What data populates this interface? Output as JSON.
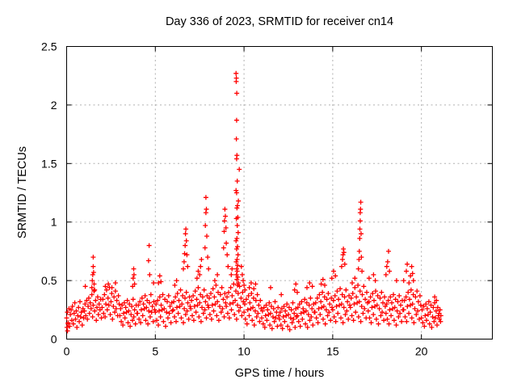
{
  "chart_data": {
    "type": "scatter",
    "title": "Day 336 of 2023, SRMTID for receiver cn14",
    "xlabel": "GPS time / hours",
    "ylabel": "SRMTID / TECUs",
    "xlim": [
      0,
      24
    ],
    "ylim": [
      0,
      2.5
    ],
    "xticks": [
      0,
      5,
      10,
      15,
      20
    ],
    "xtick_labels": [
      "0",
      "5",
      "10",
      "15",
      "20"
    ],
    "yticks": [
      0,
      0.5,
      1,
      1.5,
      2,
      2.5
    ],
    "ytick_labels": [
      "0",
      "0.5",
      "1",
      "1.5",
      "2",
      "2.5"
    ],
    "grid": "dashed",
    "grid_color": "#b0b0b0",
    "marker": {
      "shape": "plus",
      "color": "#ff0000",
      "size": 7
    },
    "legend": "none",
    "baseline_offsets": [
      0.0,
      0.04,
      0.08,
      0.13,
      0.17,
      0.21,
      0.25,
      0.29,
      0.33,
      0.38,
      0.42,
      0.46,
      0.5,
      0.54,
      0.58,
      0.63,
      0.67,
      0.71,
      0.75,
      0.79,
      0.83,
      0.88,
      0.92,
      0.96
    ],
    "baseline": [
      {
        "hour": 0,
        "y": [
          0.18,
          0.23,
          0.14,
          0.26,
          0.11,
          0.21,
          0.25,
          0.16,
          0.28,
          0.13,
          0.22,
          0.31,
          0.17,
          0.24,
          0.1,
          0.2,
          0.27,
          0.15,
          0.32,
          0.19,
          0.23,
          0.12,
          0.26,
          0.18
        ]
      },
      {
        "hour": 1,
        "y": [
          0.24,
          0.3,
          0.2,
          0.33,
          0.17,
          0.28,
          0.35,
          0.22,
          0.31,
          0.26,
          0.38,
          0.19,
          0.29,
          0.41,
          0.24,
          0.33,
          0.16,
          0.27,
          0.36,
          0.21,
          0.3,
          0.25,
          0.34,
          0.18
        ]
      },
      {
        "hour": 2,
        "y": [
          0.27,
          0.34,
          0.22,
          0.38,
          0.19,
          0.3,
          0.42,
          0.25,
          0.35,
          0.29,
          0.44,
          0.21,
          0.32,
          0.39,
          0.17,
          0.28,
          0.36,
          0.23,
          0.41,
          0.26,
          0.33,
          0.2,
          0.37,
          0.3
        ]
      },
      {
        "hour": 3,
        "y": [
          0.2,
          0.26,
          0.15,
          0.29,
          0.12,
          0.22,
          0.31,
          0.18,
          0.27,
          0.23,
          0.33,
          0.14,
          0.24,
          0.3,
          0.11,
          0.21,
          0.28,
          0.16,
          0.34,
          0.19,
          0.25,
          0.13,
          0.29,
          0.22
        ]
      },
      {
        "hour": 4,
        "y": [
          0.22,
          0.29,
          0.17,
          0.32,
          0.14,
          0.25,
          0.35,
          0.2,
          0.3,
          0.26,
          0.37,
          0.16,
          0.27,
          0.33,
          0.13,
          0.24,
          0.31,
          0.19,
          0.38,
          0.23,
          0.28,
          0.15,
          0.32,
          0.25
        ]
      },
      {
        "hour": 5,
        "y": [
          0.23,
          0.3,
          0.16,
          0.33,
          0.12,
          0.24,
          0.36,
          0.19,
          0.29,
          0.25,
          0.38,
          0.15,
          0.26,
          0.34,
          0.11,
          0.23,
          0.32,
          0.18,
          0.37,
          0.22,
          0.28,
          0.14,
          0.31,
          0.24
        ]
      },
      {
        "hour": 6,
        "y": [
          0.25,
          0.32,
          0.19,
          0.36,
          0.15,
          0.27,
          0.39,
          0.22,
          0.33,
          0.28,
          0.42,
          0.18,
          0.3,
          0.37,
          0.14,
          0.26,
          0.35,
          0.21,
          0.4,
          0.24,
          0.31,
          0.17,
          0.36,
          0.28
        ]
      },
      {
        "hour": 7,
        "y": [
          0.26,
          0.33,
          0.2,
          0.37,
          0.16,
          0.28,
          0.41,
          0.23,
          0.34,
          0.29,
          0.44,
          0.19,
          0.31,
          0.38,
          0.15,
          0.27,
          0.36,
          0.22,
          0.42,
          0.25,
          0.32,
          0.18,
          0.37,
          0.29
        ]
      },
      {
        "hour": 8,
        "y": [
          0.27,
          0.35,
          0.21,
          0.39,
          0.17,
          0.29,
          0.43,
          0.24,
          0.36,
          0.3,
          0.46,
          0.2,
          0.32,
          0.4,
          0.16,
          0.28,
          0.38,
          0.23,
          0.44,
          0.26,
          0.34,
          0.19,
          0.39,
          0.31
        ]
      },
      {
        "hour": 9,
        "y": [
          0.28,
          0.36,
          0.22,
          0.4,
          0.18,
          0.3,
          0.44,
          0.25,
          0.37,
          0.31,
          0.47,
          0.21,
          0.33,
          0.41,
          0.17,
          0.29,
          0.39,
          0.24,
          0.45,
          0.27,
          0.35,
          0.2,
          0.4,
          0.32
        ]
      },
      {
        "hour": 10,
        "y": [
          0.23,
          0.3,
          0.17,
          0.34,
          0.13,
          0.25,
          0.37,
          0.2,
          0.31,
          0.26,
          0.39,
          0.16,
          0.27,
          0.35,
          0.12,
          0.24,
          0.33,
          0.19,
          0.38,
          0.22,
          0.29,
          0.15,
          0.33,
          0.26
        ]
      },
      {
        "hour": 11,
        "y": [
          0.18,
          0.24,
          0.13,
          0.27,
          0.1,
          0.2,
          0.29,
          0.16,
          0.25,
          0.21,
          0.31,
          0.12,
          0.22,
          0.28,
          0.09,
          0.19,
          0.26,
          0.15,
          0.32,
          0.18,
          0.23,
          0.11,
          0.27,
          0.2
        ]
      },
      {
        "hour": 12,
        "y": [
          0.17,
          0.23,
          0.12,
          0.26,
          0.09,
          0.19,
          0.28,
          0.15,
          0.24,
          0.2,
          0.3,
          0.11,
          0.21,
          0.27,
          0.08,
          0.18,
          0.25,
          0.14,
          0.31,
          0.17,
          0.22,
          0.1,
          0.26,
          0.19
        ]
      },
      {
        "hour": 13,
        "y": [
          0.2,
          0.27,
          0.15,
          0.3,
          0.11,
          0.22,
          0.32,
          0.17,
          0.26,
          0.23,
          0.34,
          0.13,
          0.24,
          0.31,
          0.1,
          0.21,
          0.29,
          0.16,
          0.35,
          0.19,
          0.26,
          0.12,
          0.3,
          0.23
        ]
      },
      {
        "hour": 14,
        "y": [
          0.23,
          0.31,
          0.18,
          0.35,
          0.14,
          0.26,
          0.38,
          0.21,
          0.32,
          0.27,
          0.4,
          0.17,
          0.28,
          0.36,
          0.13,
          0.25,
          0.34,
          0.2,
          0.39,
          0.23,
          0.3,
          0.16,
          0.35,
          0.27
        ]
      },
      {
        "hour": 15,
        "y": [
          0.25,
          0.33,
          0.19,
          0.37,
          0.15,
          0.28,
          0.41,
          0.22,
          0.34,
          0.29,
          0.43,
          0.18,
          0.3,
          0.38,
          0.14,
          0.27,
          0.36,
          0.21,
          0.42,
          0.24,
          0.32,
          0.17,
          0.37,
          0.29
        ]
      },
      {
        "hour": 16,
        "y": [
          0.27,
          0.35,
          0.2,
          0.39,
          0.16,
          0.3,
          0.44,
          0.23,
          0.36,
          0.31,
          0.46,
          0.19,
          0.32,
          0.41,
          0.15,
          0.28,
          0.38,
          0.22,
          0.45,
          0.26,
          0.34,
          0.18,
          0.4,
          0.31
        ]
      },
      {
        "hour": 17,
        "y": [
          0.24,
          0.32,
          0.18,
          0.36,
          0.14,
          0.27,
          0.39,
          0.21,
          0.33,
          0.28,
          0.41,
          0.17,
          0.29,
          0.37,
          0.13,
          0.26,
          0.35,
          0.2,
          0.4,
          0.23,
          0.31,
          0.16,
          0.36,
          0.28
        ]
      },
      {
        "hour": 18,
        "y": [
          0.22,
          0.3,
          0.17,
          0.33,
          0.13,
          0.25,
          0.36,
          0.2,
          0.31,
          0.26,
          0.38,
          0.16,
          0.27,
          0.34,
          0.12,
          0.24,
          0.32,
          0.19,
          0.37,
          0.22,
          0.29,
          0.15,
          0.33,
          0.25
        ]
      },
      {
        "hour": 19,
        "y": [
          0.25,
          0.33,
          0.19,
          0.36,
          0.15,
          0.28,
          0.4,
          0.22,
          0.34,
          0.29,
          0.42,
          0.18,
          0.3,
          0.38,
          0.14,
          0.26,
          0.36,
          0.21,
          0.41,
          0.24,
          0.32,
          0.17,
          0.37,
          0.29
        ]
      },
      {
        "hour": 20,
        "y": [
          0.18,
          0.25,
          0.14,
          0.28,
          0.11,
          0.2,
          0.3,
          0.16,
          0.26,
          0.21,
          0.32,
          0.13,
          0.23,
          0.29,
          0.1,
          0.19,
          0.27,
          0.15,
          0.31,
          0.18,
          0.24,
          0.12,
          0.27,
          0.2
        ]
      }
    ],
    "extra_points": [
      [
        0.02,
        0.1
      ],
      [
        0.05,
        0.07
      ],
      [
        0.08,
        0.13
      ],
      [
        1.05,
        0.45
      ],
      [
        1.42,
        0.44
      ],
      [
        1.45,
        0.5
      ],
      [
        1.47,
        0.55
      ],
      [
        1.5,
        0.62
      ],
      [
        1.5,
        0.7
      ],
      [
        1.52,
        0.57
      ],
      [
        1.55,
        0.47
      ],
      [
        1.58,
        0.42
      ],
      [
        2.18,
        0.45
      ],
      [
        2.35,
        0.47
      ],
      [
        2.55,
        0.44
      ],
      [
        2.75,
        0.48
      ],
      [
        3.72,
        0.45
      ],
      [
        3.75,
        0.52
      ],
      [
        3.78,
        0.6
      ],
      [
        3.8,
        0.55
      ],
      [
        3.83,
        0.47
      ],
      [
        4.62,
        0.67
      ],
      [
        4.65,
        0.8
      ],
      [
        4.68,
        0.55
      ],
      [
        4.9,
        0.48
      ],
      [
        5.18,
        0.48
      ],
      [
        5.25,
        0.54
      ],
      [
        5.32,
        0.49
      ],
      [
        6.1,
        0.46
      ],
      [
        6.2,
        0.5
      ],
      [
        6.58,
        0.6
      ],
      [
        6.62,
        0.66
      ],
      [
        6.65,
        0.73
      ],
      [
        6.68,
        0.8
      ],
      [
        6.7,
        0.9
      ],
      [
        6.72,
        0.94
      ],
      [
        6.75,
        0.84
      ],
      [
        6.78,
        0.72
      ],
      [
        6.82,
        0.62
      ],
      [
        7.35,
        0.52
      ],
      [
        7.42,
        0.58
      ],
      [
        7.5,
        0.55
      ],
      [
        7.55,
        0.62
      ],
      [
        7.6,
        0.68
      ],
      [
        7.8,
        0.78
      ],
      [
        7.82,
        0.97
      ],
      [
        7.85,
        1.08
      ],
      [
        7.85,
        1.21
      ],
      [
        7.88,
        1.11
      ],
      [
        7.9,
        0.88
      ],
      [
        7.95,
        0.7
      ],
      [
        8.0,
        0.6
      ],
      [
        8.35,
        0.5
      ],
      [
        8.5,
        0.55
      ],
      [
        8.85,
        0.78
      ],
      [
        8.88,
        0.92
      ],
      [
        8.9,
        1.01
      ],
      [
        8.92,
        1.11
      ],
      [
        8.95,
        1.05
      ],
      [
        8.98,
        0.95
      ],
      [
        9.0,
        0.82
      ],
      [
        9.05,
        0.72
      ],
      [
        9.1,
        0.62
      ],
      [
        9.28,
        0.55
      ],
      [
        9.32,
        0.6
      ],
      [
        9.55,
        2.27
      ],
      [
        9.57,
        2.23
      ],
      [
        9.56,
        2.2
      ],
      [
        9.59,
        2.1
      ],
      [
        9.58,
        1.87
      ],
      [
        9.57,
        1.71
      ],
      [
        9.6,
        1.57
      ],
      [
        9.58,
        1.54
      ],
      [
        9.73,
        1.45
      ],
      [
        9.62,
        1.35
      ],
      [
        9.55,
        1.27
      ],
      [
        9.58,
        1.25
      ],
      [
        9.68,
        1.18
      ],
      [
        9.63,
        1.14
      ],
      [
        9.6,
        1.12
      ],
      [
        9.65,
        1.04
      ],
      [
        9.57,
        1.03
      ],
      [
        9.62,
        0.97
      ],
      [
        9.67,
        0.91
      ],
      [
        9.6,
        0.86
      ],
      [
        9.55,
        0.84
      ],
      [
        9.63,
        0.79
      ],
      [
        9.58,
        0.77
      ],
      [
        9.66,
        0.72
      ],
      [
        9.61,
        0.68
      ],
      [
        9.56,
        0.66
      ],
      [
        9.64,
        0.63
      ],
      [
        9.59,
        0.6
      ],
      [
        9.62,
        0.58
      ],
      [
        9.57,
        0.55
      ],
      [
        9.65,
        0.53
      ],
      [
        9.6,
        0.51
      ],
      [
        9.68,
        0.48
      ],
      [
        9.63,
        0.46
      ],
      [
        9.85,
        0.62
      ],
      [
        9.9,
        0.55
      ],
      [
        9.95,
        0.5
      ],
      [
        10.0,
        0.46
      ],
      [
        10.05,
        0.42
      ],
      [
        10.3,
        0.44
      ],
      [
        10.4,
        0.48
      ],
      [
        10.55,
        0.43
      ],
      [
        10.65,
        0.47
      ],
      [
        11.5,
        0.44
      ],
      [
        12.1,
        0.38
      ],
      [
        12.85,
        0.42
      ],
      [
        12.92,
        0.47
      ],
      [
        13.0,
        0.4
      ],
      [
        13.55,
        0.44
      ],
      [
        13.7,
        0.48
      ],
      [
        13.85,
        0.45
      ],
      [
        14.35,
        0.47
      ],
      [
        14.45,
        0.51
      ],
      [
        14.55,
        0.46
      ],
      [
        14.95,
        0.52
      ],
      [
        15.05,
        0.58
      ],
      [
        15.15,
        0.54
      ],
      [
        15.5,
        0.62
      ],
      [
        15.55,
        0.68
      ],
      [
        15.58,
        0.72
      ],
      [
        15.6,
        0.77
      ],
      [
        15.63,
        0.74
      ],
      [
        15.68,
        0.64
      ],
      [
        16.1,
        0.48
      ],
      [
        16.25,
        0.52
      ],
      [
        16.45,
        0.6
      ],
      [
        16.48,
        0.68
      ],
      [
        16.5,
        0.75
      ],
      [
        16.52,
        0.86
      ],
      [
        16.53,
        0.94
      ],
      [
        16.55,
        1.01
      ],
      [
        16.55,
        1.08
      ],
      [
        16.57,
        1.11
      ],
      [
        16.58,
        1.17
      ],
      [
        16.6,
        0.9
      ],
      [
        16.62,
        0.7
      ],
      [
        16.65,
        0.58
      ],
      [
        17.05,
        0.52
      ],
      [
        17.3,
        0.55
      ],
      [
        17.4,
        0.5
      ],
      [
        18.0,
        0.55
      ],
      [
        18.05,
        0.62
      ],
      [
        18.1,
        0.66
      ],
      [
        18.15,
        0.75
      ],
      [
        18.2,
        0.58
      ],
      [
        18.6,
        0.5
      ],
      [
        19.0,
        0.5
      ],
      [
        19.15,
        0.58
      ],
      [
        19.2,
        0.64
      ],
      [
        19.3,
        0.48
      ],
      [
        19.38,
        0.54
      ],
      [
        19.45,
        0.62
      ],
      [
        19.5,
        0.56
      ],
      [
        19.55,
        0.5
      ],
      [
        20.75,
        0.36
      ],
      [
        20.85,
        0.33
      ],
      [
        21.0,
        0.22
      ],
      [
        21.02,
        0.17
      ],
      [
        21.05,
        0.25
      ],
      [
        21.08,
        0.15
      ],
      [
        21.1,
        0.2
      ]
    ]
  }
}
